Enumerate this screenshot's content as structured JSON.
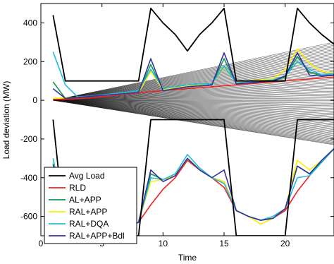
{
  "chart_data": {
    "type": "line",
    "title": "",
    "xlabel": "Time",
    "ylabel": "Load deviation (MW)",
    "xlim": [
      0,
      24
    ],
    "ylim": [
      -700,
      500
    ],
    "x_ticks": [
      0,
      5,
      10,
      15,
      20
    ],
    "y_ticks": [
      400,
      200,
      0,
      -200,
      -400,
      -600
    ],
    "grid": false,
    "legend_position": "bottom-left",
    "x": [
      1,
      2,
      3,
      4,
      5,
      6,
      7,
      8,
      9,
      10,
      11,
      12,
      13,
      14,
      15,
      16,
      17,
      18,
      19,
      20,
      21,
      22,
      23,
      24
    ],
    "series": [
      {
        "name": "Avg Load",
        "color": "#000000",
        "upper": [
          440,
          100,
          100,
          100,
          100,
          100,
          100,
          100,
          475,
          400,
          340,
          255,
          340,
          400,
          475,
          100,
          100,
          100,
          100,
          100,
          475,
          400,
          340,
          290
        ],
        "lower": [
          -100,
          -700,
          -700,
          -700,
          -700,
          -700,
          -700,
          -700,
          -100,
          -100,
          -100,
          -100,
          -100,
          -100,
          -100,
          -700,
          -700,
          -700,
          -700,
          -700,
          -100,
          -100,
          -100,
          -100
        ]
      },
      {
        "name": "RLD",
        "color": "#ee2222",
        "upper": [
          5,
          5,
          8,
          12,
          18,
          25,
          32,
          38,
          45,
          50,
          55,
          60,
          65,
          70,
          75,
          80,
          85,
          90,
          95,
          100,
          105,
          110,
          115,
          120
        ],
        "lower": [
          -600,
          -650,
          -650,
          -650,
          -650,
          -650,
          -650,
          -630,
          -540,
          -460,
          -400,
          -310,
          -360,
          -400,
          -450,
          -570,
          -600,
          -620,
          -610,
          -570,
          -470,
          -390,
          -310,
          -250
        ]
      },
      {
        "name": "AL+APP",
        "color": "#119955",
        "upper": [
          95,
          10,
          15,
          20,
          25,
          30,
          35,
          40,
          185,
          50,
          60,
          70,
          75,
          80,
          215,
          85,
          90,
          95,
          100,
          120,
          225,
          145,
          130,
          130
        ],
        "lower": [
          -320,
          -620,
          -650,
          -650,
          -650,
          -650,
          -650,
          -630,
          -380,
          -410,
          -390,
          -300,
          -360,
          -400,
          -420,
          -570,
          -600,
          -620,
          -610,
          -560,
          -340,
          -380,
          -320,
          -250
        ]
      },
      {
        "name": "RAL+APP",
        "color": "#ffee00",
        "upper": [
          10,
          12,
          15,
          20,
          25,
          30,
          35,
          40,
          150,
          55,
          65,
          75,
          80,
          85,
          170,
          95,
          100,
          105,
          110,
          160,
          265,
          190,
          150,
          140
        ],
        "lower": [
          -320,
          -620,
          -650,
          -650,
          -650,
          -650,
          -650,
          -630,
          -420,
          -410,
          -390,
          -300,
          -360,
          -400,
          -420,
          -570,
          -600,
          -640,
          -610,
          -560,
          -310,
          -360,
          -310,
          -250
        ]
      },
      {
        "name": "RAL+DQA",
        "color": "#22bbdd",
        "upper": [
          250,
          80,
          18,
          22,
          28,
          35,
          42,
          50,
          160,
          60,
          70,
          80,
          85,
          85,
          175,
          90,
          95,
          100,
          105,
          125,
          200,
          160,
          130,
          140
        ],
        "lower": [
          -300,
          -600,
          -650,
          -660,
          -670,
          -680,
          -670,
          -630,
          -400,
          -410,
          -380,
          -280,
          -350,
          -400,
          -430,
          -570,
          -600,
          -620,
          -600,
          -560,
          -400,
          -390,
          -320,
          -250
        ]
      },
      {
        "name": "RAL+APP+Bdl",
        "color": "#333399",
        "upper": [
          60,
          10,
          15,
          20,
          25,
          30,
          35,
          40,
          215,
          50,
          60,
          70,
          75,
          80,
          245,
          85,
          90,
          95,
          100,
          125,
          245,
          130,
          125,
          130
        ],
        "lower": [
          -330,
          -630,
          -650,
          -650,
          -650,
          -650,
          -650,
          -630,
          -360,
          -420,
          -390,
          -300,
          -360,
          -400,
          -360,
          -570,
          -600,
          -620,
          -610,
          -560,
          -340,
          -380,
          -310,
          -250
        ]
      }
    ],
    "fan": {
      "name": "",
      "color": "#1a1a1a",
      "count": 80,
      "start_x": 1,
      "end_x": 24,
      "start_y": 0,
      "end_y_range": [
        -230,
        300
      ]
    }
  }
}
